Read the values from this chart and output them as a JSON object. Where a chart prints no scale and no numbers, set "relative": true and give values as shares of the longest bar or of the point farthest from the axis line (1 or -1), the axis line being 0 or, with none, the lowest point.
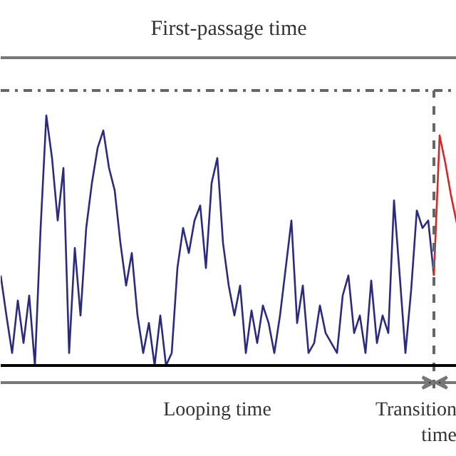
{
  "chart_data": {
    "type": "line",
    "relative": true,
    "title": "First-passage time",
    "categories": [
      null,
      null,
      null,
      null,
      null,
      null,
      null,
      null,
      null,
      null,
      null,
      null,
      null,
      null,
      null,
      null,
      null,
      null,
      null,
      null,
      null,
      null,
      null,
      null,
      null,
      null,
      null,
      null,
      null,
      null,
      null,
      null,
      null,
      null,
      null,
      null,
      null,
      null,
      null,
      null,
      null,
      null,
      null,
      null,
      null,
      null,
      null,
      null,
      null,
      null,
      null,
      null,
      null,
      null,
      null,
      null,
      null,
      null,
      null,
      null,
      null,
      null,
      null,
      null,
      null,
      null,
      null,
      null,
      null,
      null,
      null,
      null,
      null,
      null,
      null,
      null,
      null,
      null,
      null,
      null,
      null
    ],
    "series": [
      {
        "color": "#2b2a7e",
        "values": [
          0.36,
          0.2,
          0.05,
          0.26,
          0.09,
          0.28,
          0,
          0.55,
          1,
          0.83,
          0.58,
          0.79,
          0.05,
          0.47,
          0.2,
          0.55,
          0.73,
          0.87,
          0.94,
          0.79,
          0.7,
          0.49,
          0.32,
          0.45,
          0.2,
          0.05,
          0.17,
          0,
          0.2,
          0,
          0.05,
          0.39,
          0.55,
          0.45,
          0.58,
          0.64,
          0.39,
          0.73,
          0.83,
          0.49,
          0.32,
          0.2,
          0.32,
          0.05,
          0.22,
          0.09,
          0.24,
          0.17,
          0.05,
          0.2,
          0.39,
          0.58,
          0.17,
          0.32,
          0.05,
          0.09,
          0.24,
          0.13,
          0.09,
          0.05,
          0.28,
          0.36,
          0.13,
          0.2,
          0.05,
          0.34,
          0.09,
          0.2,
          0.13,
          0.66,
          0.36,
          0.05,
          0.3,
          0.62,
          0.55,
          0.58,
          0.36,
          null,
          null,
          null,
          null
        ]
      },
      {
        "color": "#d62728",
        "values": [
          null,
          null,
          null,
          null,
          null,
          null,
          null,
          null,
          null,
          null,
          null,
          null,
          null,
          null,
          null,
          null,
          null,
          null,
          null,
          null,
          null,
          null,
          null,
          null,
          null,
          null,
          null,
          null,
          null,
          null,
          null,
          null,
          null,
          null,
          null,
          null,
          null,
          null,
          null,
          null,
          null,
          null,
          null,
          null,
          null,
          null,
          null,
          null,
          null,
          null,
          null,
          null,
          null,
          null,
          null,
          null,
          null,
          null,
          null,
          null,
          null,
          null,
          null,
          null,
          null,
          null,
          null,
          null,
          null,
          null,
          null,
          null,
          null,
          null,
          null,
          null,
          0.36,
          0.92,
          0.81,
          0.68,
          0.57
        ]
      }
    ],
    "ref_lines": [
      {
        "axis": "y",
        "value": 1.1,
        "color": "#666666",
        "line_style": "dashdot"
      }
    ],
    "annotations": [
      "Looping time",
      "Transition\ntime"
    ],
    "grid": false,
    "line_style": "solid",
    "marker": "none"
  }
}
